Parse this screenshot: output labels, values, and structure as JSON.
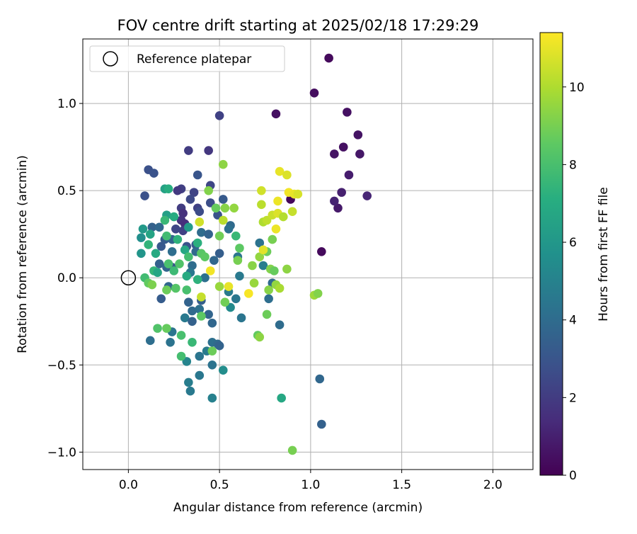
{
  "chart_data": {
    "type": "scatter",
    "title": "FOV centre drift starting at 2025/02/18 17:29:29",
    "xlabel": "Angular distance from reference (arcmin)",
    "ylabel": "Rotation from reference (arcmin)",
    "xlim": [
      -0.25,
      2.22
    ],
    "ylim": [
      -1.1,
      1.37
    ],
    "xticks": [
      0.0,
      0.5,
      1.0,
      1.5,
      2.0
    ],
    "xtick_labels": [
      "0.0",
      "0.5",
      "1.0",
      "1.5",
      "2.0"
    ],
    "yticks": [
      -1.0,
      -0.5,
      0.0,
      0.5,
      1.0
    ],
    "ytick_labels": [
      "−1.0",
      "−0.5",
      "0.0",
      "0.5",
      "1.0"
    ],
    "grid": true,
    "legend": {
      "placement": "top-left",
      "entries": [
        "Reference platepar"
      ]
    },
    "reference_point": {
      "x": 0.0,
      "y": 0.0
    },
    "colorbar": {
      "label": "Hours from first FF file",
      "range": [
        0,
        11.4
      ],
      "ticks": [
        0,
        2,
        4,
        6,
        8,
        10
      ],
      "tick_labels": [
        "0",
        "2",
        "4",
        "6",
        "8",
        "10"
      ],
      "colormap": "viridis"
    },
    "points": [
      {
        "x": 1.1,
        "y": 1.26,
        "c": 0.3
      },
      {
        "x": 1.02,
        "y": 1.06,
        "c": 0.4
      },
      {
        "x": 1.2,
        "y": 0.95,
        "c": 0.5
      },
      {
        "x": 1.26,
        "y": 0.82,
        "c": 0.6
      },
      {
        "x": 1.18,
        "y": 0.75,
        "c": 0.5
      },
      {
        "x": 1.13,
        "y": 0.71,
        "c": 0.6
      },
      {
        "x": 1.27,
        "y": 0.71,
        "c": 0.7
      },
      {
        "x": 1.21,
        "y": 0.59,
        "c": 0.9
      },
      {
        "x": 1.15,
        "y": 0.4,
        "c": 0.8
      },
      {
        "x": 1.17,
        "y": 0.49,
        "c": 1.0
      },
      {
        "x": 1.13,
        "y": 0.44,
        "c": 1.1
      },
      {
        "x": 1.31,
        "y": 0.47,
        "c": 1.2
      },
      {
        "x": 1.06,
        "y": 0.15,
        "c": 0.3
      },
      {
        "x": 0.89,
        "y": 0.45,
        "c": 0.2
      },
      {
        "x": 0.81,
        "y": 0.94,
        "c": 0.5
      },
      {
        "x": 0.5,
        "y": 0.93,
        "c": 2.2
      },
      {
        "x": 0.33,
        "y": 0.73,
        "c": 2.0
      },
      {
        "x": 0.44,
        "y": 0.73,
        "c": 1.8
      },
      {
        "x": 0.11,
        "y": 0.62,
        "c": 2.8
      },
      {
        "x": 0.14,
        "y": 0.6,
        "c": 2.9
      },
      {
        "x": 0.38,
        "y": 0.59,
        "c": 3.0
      },
      {
        "x": 0.45,
        "y": 0.53,
        "c": 2.4
      },
      {
        "x": 0.29,
        "y": 0.51,
        "c": 2.1
      },
      {
        "x": 0.27,
        "y": 0.5,
        "c": 1.9
      },
      {
        "x": 0.36,
        "y": 0.49,
        "c": 2.3
      },
      {
        "x": 0.09,
        "y": 0.47,
        "c": 2.8
      },
      {
        "x": 0.34,
        "y": 0.45,
        "c": 2.5
      },
      {
        "x": 0.52,
        "y": 0.45,
        "c": 3.2
      },
      {
        "x": 0.45,
        "y": 0.43,
        "c": 2.7
      },
      {
        "x": 0.29,
        "y": 0.4,
        "c": 2.0
      },
      {
        "x": 0.38,
        "y": 0.4,
        "c": 2.2
      },
      {
        "x": 0.39,
        "y": 0.38,
        "c": 2.6
      },
      {
        "x": 0.3,
        "y": 0.37,
        "c": 1.6
      },
      {
        "x": 0.49,
        "y": 0.36,
        "c": 2.9
      },
      {
        "x": 0.29,
        "y": 0.33,
        "c": 1.7
      },
      {
        "x": 0.31,
        "y": 0.31,
        "c": 1.5
      },
      {
        "x": 0.13,
        "y": 0.29,
        "c": 3.5
      },
      {
        "x": 0.17,
        "y": 0.29,
        "c": 3.8
      },
      {
        "x": 0.3,
        "y": 0.27,
        "c": 2.2
      },
      {
        "x": 0.26,
        "y": 0.28,
        "c": 2.4
      },
      {
        "x": 0.56,
        "y": 0.3,
        "c": 3.9
      },
      {
        "x": 0.4,
        "y": 0.26,
        "c": 4.0
      },
      {
        "x": 0.44,
        "y": 0.25,
        "c": 3.6
      },
      {
        "x": 0.55,
        "y": 0.28,
        "c": 4.2
      },
      {
        "x": 0.2,
        "y": 0.22,
        "c": 3.3
      },
      {
        "x": 0.24,
        "y": 0.22,
        "c": 3.7
      },
      {
        "x": 0.18,
        "y": 0.18,
        "c": 3.1
      },
      {
        "x": 0.32,
        "y": 0.18,
        "c": 2.9
      },
      {
        "x": 0.37,
        "y": 0.19,
        "c": 3.2
      },
      {
        "x": 0.5,
        "y": 0.14,
        "c": 3.4
      },
      {
        "x": 0.37,
        "y": 0.15,
        "c": 3.9
      },
      {
        "x": 0.24,
        "y": 0.15,
        "c": 4.1
      },
      {
        "x": 0.47,
        "y": 0.1,
        "c": 3.8
      },
      {
        "x": 0.6,
        "y": 0.12,
        "c": 4.4
      },
      {
        "x": 0.17,
        "y": 0.08,
        "c": 3.5
      },
      {
        "x": 0.21,
        "y": 0.06,
        "c": 3.7
      },
      {
        "x": 0.35,
        "y": 0.07,
        "c": 4.0
      },
      {
        "x": 0.24,
        "y": 0.06,
        "c": 3.0
      },
      {
        "x": 0.34,
        "y": 0.03,
        "c": 4.5
      },
      {
        "x": 0.42,
        "y": 0.0,
        "c": 4.2
      },
      {
        "x": 0.61,
        "y": 0.01,
        "c": 4.6
      },
      {
        "x": 0.72,
        "y": 0.2,
        "c": 4.3
      },
      {
        "x": 0.74,
        "y": 0.07,
        "c": 4.8
      },
      {
        "x": 0.79,
        "y": -0.03,
        "c": 3.9
      },
      {
        "x": 0.77,
        "y": -0.12,
        "c": 4.1
      },
      {
        "x": 0.55,
        "y": -0.08,
        "c": 4.7
      },
      {
        "x": 0.59,
        "y": -0.12,
        "c": 4.5
      },
      {
        "x": 0.18,
        "y": -0.12,
        "c": 3.3
      },
      {
        "x": 0.22,
        "y": -0.05,
        "c": 3.8
      },
      {
        "x": 0.33,
        "y": -0.14,
        "c": 3.6
      },
      {
        "x": 0.4,
        "y": -0.13,
        "c": 3.4
      },
      {
        "x": 0.35,
        "y": -0.19,
        "c": 3.9
      },
      {
        "x": 0.39,
        "y": -0.18,
        "c": 4.2
      },
      {
        "x": 0.44,
        "y": -0.21,
        "c": 3.7
      },
      {
        "x": 0.56,
        "y": -0.17,
        "c": 5.4
      },
      {
        "x": 0.62,
        "y": -0.23,
        "c": 4.4
      },
      {
        "x": 0.31,
        "y": -0.23,
        "c": 4.6
      },
      {
        "x": 0.35,
        "y": -0.25,
        "c": 3.5
      },
      {
        "x": 0.46,
        "y": -0.26,
        "c": 3.8
      },
      {
        "x": 0.83,
        "y": -0.27,
        "c": 4.0
      },
      {
        "x": 0.24,
        "y": -0.31,
        "c": 4.4
      },
      {
        "x": 0.12,
        "y": -0.36,
        "c": 4.1
      },
      {
        "x": 0.23,
        "y": -0.37,
        "c": 4.3
      },
      {
        "x": 0.46,
        "y": -0.37,
        "c": 4.2
      },
      {
        "x": 0.49,
        "y": -0.38,
        "c": 3.9
      },
      {
        "x": 0.5,
        "y": -0.39,
        "c": 3.6
      },
      {
        "x": 0.39,
        "y": -0.45,
        "c": 4.4
      },
      {
        "x": 0.43,
        "y": -0.42,
        "c": 4.7
      },
      {
        "x": 0.32,
        "y": -0.48,
        "c": 5.1
      },
      {
        "x": 0.46,
        "y": -0.5,
        "c": 4.3
      },
      {
        "x": 0.52,
        "y": -0.53,
        "c": 5.5
      },
      {
        "x": 0.39,
        "y": -0.56,
        "c": 4.5
      },
      {
        "x": 0.33,
        "y": -0.6,
        "c": 4.8
      },
      {
        "x": 0.34,
        "y": -0.65,
        "c": 4.6
      },
      {
        "x": 0.46,
        "y": -0.69,
        "c": 4.9
      },
      {
        "x": 1.05,
        "y": -0.58,
        "c": 3.8
      },
      {
        "x": 1.06,
        "y": -0.84,
        "c": 3.5
      },
      {
        "x": 0.84,
        "y": -0.69,
        "c": 6.8
      },
      {
        "x": 0.9,
        "y": -0.99,
        "c": 9.0
      },
      {
        "x": 0.07,
        "y": 0.23,
        "c": 5.6
      },
      {
        "x": 0.08,
        "y": 0.28,
        "c": 6.1
      },
      {
        "x": 0.12,
        "y": 0.25,
        "c": 6.6
      },
      {
        "x": 0.07,
        "y": 0.14,
        "c": 5.9
      },
      {
        "x": 0.11,
        "y": 0.19,
        "c": 7.4
      },
      {
        "x": 0.15,
        "y": 0.14,
        "c": 6.9
      },
      {
        "x": 0.21,
        "y": 0.36,
        "c": 6.4
      },
      {
        "x": 0.25,
        "y": 0.35,
        "c": 7.0
      },
      {
        "x": 0.2,
        "y": 0.33,
        "c": 7.6
      },
      {
        "x": 0.21,
        "y": 0.24,
        "c": 7.8
      },
      {
        "x": 0.27,
        "y": 0.22,
        "c": 7.3
      },
      {
        "x": 0.33,
        "y": 0.29,
        "c": 6.2
      },
      {
        "x": 0.2,
        "y": 0.51,
        "c": 6.5
      },
      {
        "x": 0.22,
        "y": 0.51,
        "c": 7.1
      },
      {
        "x": 0.31,
        "y": 0.16,
        "c": 6.8
      },
      {
        "x": 0.33,
        "y": 0.12,
        "c": 7.9
      },
      {
        "x": 0.38,
        "y": 0.2,
        "c": 7.2
      },
      {
        "x": 0.4,
        "y": 0.14,
        "c": 8.4
      },
      {
        "x": 0.14,
        "y": 0.04,
        "c": 7.5
      },
      {
        "x": 0.16,
        "y": 0.03,
        "c": 6.7
      },
      {
        "x": 0.22,
        "y": 0.08,
        "c": 8.0
      },
      {
        "x": 0.25,
        "y": 0.04,
        "c": 7.7
      },
      {
        "x": 0.28,
        "y": 0.08,
        "c": 8.2
      },
      {
        "x": 0.32,
        "y": 0.01,
        "c": 6.9
      },
      {
        "x": 0.38,
        "y": -0.01,
        "c": 7.3
      },
      {
        "x": 0.09,
        "y": 0.0,
        "c": 7.8
      },
      {
        "x": 0.11,
        "y": -0.03,
        "c": 8.6
      },
      {
        "x": 0.13,
        "y": -0.04,
        "c": 9.1
      },
      {
        "x": 0.21,
        "y": -0.07,
        "c": 8.8
      },
      {
        "x": 0.26,
        "y": -0.06,
        "c": 8.3
      },
      {
        "x": 0.32,
        "y": -0.07,
        "c": 8.0
      },
      {
        "x": 0.42,
        "y": 0.12,
        "c": 8.5
      },
      {
        "x": 0.44,
        "y": 0.5,
        "c": 9.2
      },
      {
        "x": 0.52,
        "y": 0.65,
        "c": 9.4
      },
      {
        "x": 0.48,
        "y": 0.4,
        "c": 8.7
      },
      {
        "x": 0.53,
        "y": 0.4,
        "c": 9.3
      },
      {
        "x": 0.58,
        "y": 0.4,
        "c": 9.5
      },
      {
        "x": 0.59,
        "y": 0.24,
        "c": 7.6
      },
      {
        "x": 0.5,
        "y": 0.24,
        "c": 8.9
      },
      {
        "x": 0.61,
        "y": 0.17,
        "c": 8.5
      },
      {
        "x": 0.6,
        "y": 0.1,
        "c": 9.0
      },
      {
        "x": 0.68,
        "y": 0.07,
        "c": 9.3
      },
      {
        "x": 0.72,
        "y": 0.12,
        "c": 9.5
      },
      {
        "x": 0.76,
        "y": 0.15,
        "c": 8.8
      },
      {
        "x": 0.79,
        "y": 0.22,
        "c": 9.0
      },
      {
        "x": 0.78,
        "y": 0.05,
        "c": 9.2
      },
      {
        "x": 0.8,
        "y": 0.04,
        "c": 8.7
      },
      {
        "x": 0.87,
        "y": 0.05,
        "c": 9.4
      },
      {
        "x": 0.69,
        "y": -0.03,
        "c": 9.6
      },
      {
        "x": 0.77,
        "y": -0.07,
        "c": 9.3
      },
      {
        "x": 0.81,
        "y": -0.04,
        "c": 9.5
      },
      {
        "x": 0.83,
        "y": -0.06,
        "c": 9.9
      },
      {
        "x": 0.53,
        "y": -0.14,
        "c": 8.9
      },
      {
        "x": 0.5,
        "y": -0.05,
        "c": 9.6
      },
      {
        "x": 0.76,
        "y": -0.21,
        "c": 8.8
      },
      {
        "x": 0.16,
        "y": -0.29,
        "c": 8.2
      },
      {
        "x": 0.21,
        "y": -0.29,
        "c": 8.7
      },
      {
        "x": 0.29,
        "y": -0.33,
        "c": 8.0
      },
      {
        "x": 0.4,
        "y": -0.22,
        "c": 8.5
      },
      {
        "x": 0.35,
        "y": -0.37,
        "c": 7.6
      },
      {
        "x": 0.29,
        "y": -0.45,
        "c": 7.9
      },
      {
        "x": 0.46,
        "y": -0.42,
        "c": 8.8
      },
      {
        "x": 0.71,
        "y": -0.33,
        "c": 8.6
      },
      {
        "x": 0.72,
        "y": -0.34,
        "c": 9.4
      },
      {
        "x": 1.02,
        "y": -0.1,
        "c": 9.7
      },
      {
        "x": 1.04,
        "y": -0.09,
        "c": 9.2
      },
      {
        "x": 0.52,
        "y": 0.33,
        "c": 10.2
      },
      {
        "x": 0.39,
        "y": 0.32,
        "c": 10.6
      },
      {
        "x": 0.45,
        "y": 0.04,
        "c": 11.2
      },
      {
        "x": 0.55,
        "y": -0.05,
        "c": 11.0
      },
      {
        "x": 0.66,
        "y": -0.09,
        "c": 11.3
      },
      {
        "x": 0.74,
        "y": 0.32,
        "c": 10.0
      },
      {
        "x": 0.76,
        "y": 0.33,
        "c": 10.3
      },
      {
        "x": 0.79,
        "y": 0.36,
        "c": 10.5
      },
      {
        "x": 0.82,
        "y": 0.37,
        "c": 10.8
      },
      {
        "x": 0.85,
        "y": 0.35,
        "c": 10.1
      },
      {
        "x": 0.9,
        "y": 0.38,
        "c": 10.4
      },
      {
        "x": 0.73,
        "y": 0.42,
        "c": 10.2
      },
      {
        "x": 0.73,
        "y": 0.5,
        "c": 10.6
      },
      {
        "x": 0.82,
        "y": 0.44,
        "c": 11.1
      },
      {
        "x": 0.83,
        "y": 0.61,
        "c": 11.0
      },
      {
        "x": 0.87,
        "y": 0.59,
        "c": 10.8
      },
      {
        "x": 0.88,
        "y": 0.49,
        "c": 11.2
      },
      {
        "x": 0.91,
        "y": 0.48,
        "c": 11.0
      },
      {
        "x": 0.93,
        "y": 0.48,
        "c": 10.7
      },
      {
        "x": 0.81,
        "y": 0.28,
        "c": 11.1
      },
      {
        "x": 0.74,
        "y": 0.16,
        "c": 10.9
      },
      {
        "x": 0.4,
        "y": -0.11,
        "c": 10.4
      }
    ]
  }
}
